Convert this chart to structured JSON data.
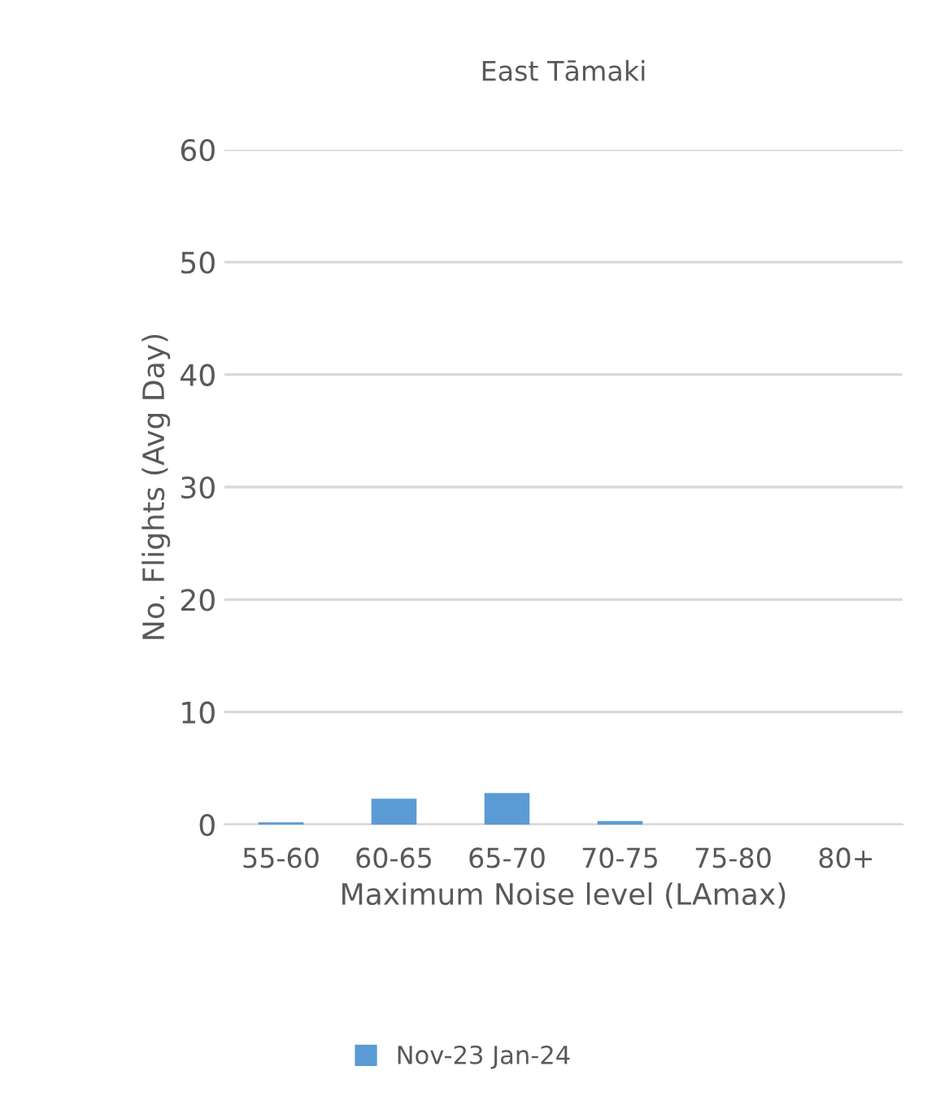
{
  "chart_data": {
    "type": "bar",
    "title": "East Tāmaki",
    "xlabel": "Maximum Noise level (LAmax)",
    "ylabel": "No. Flights (Avg Day)",
    "categories": [
      "55-60",
      "60-65",
      "65-70",
      "70-75",
      "75-80",
      "80+"
    ],
    "series": [
      {
        "name": "Nov-23 Jan-24",
        "color": "#5b9bd5",
        "values": [
          0.2,
          2.3,
          2.8,
          0.3,
          0,
          0
        ]
      }
    ],
    "ylim": [
      0,
      60
    ],
    "yticks": [
      0,
      10,
      20,
      30,
      40,
      50,
      60
    ],
    "grid": "y",
    "legend": "bottom"
  }
}
